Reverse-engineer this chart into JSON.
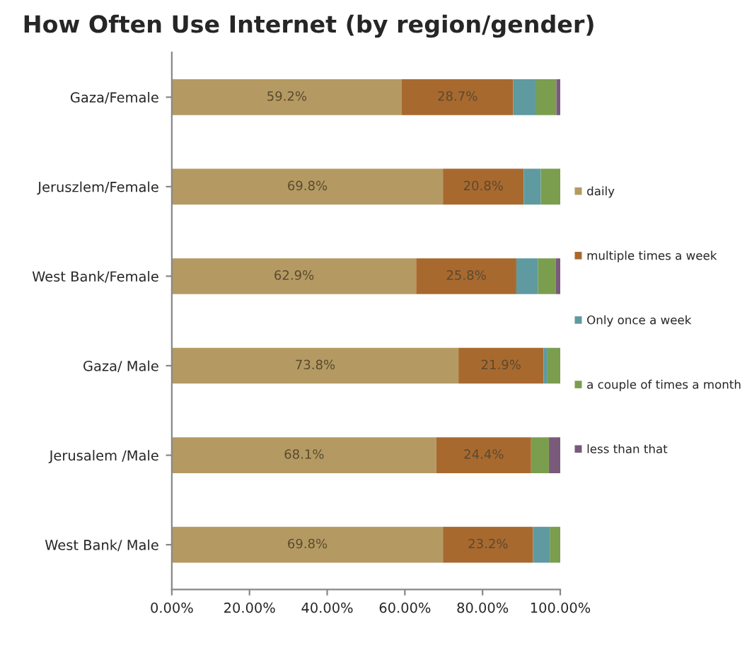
{
  "chart_data": {
    "type": "bar",
    "orientation": "horizontal",
    "stacked": true,
    "title": "How Often Use Internet (by region/gender)",
    "categories": [
      "Gaza/Female",
      "Jeruszlem/Female",
      "West Bank/Female",
      "Gaza/ Male",
      "Jerusalem /Male",
      "West Bank/ Male"
    ],
    "series": [
      {
        "name": "daily",
        "color": "#b49a62",
        "values": [
          59.2,
          69.8,
          62.9,
          73.8,
          68.1,
          69.8
        ],
        "value_labels": [
          "59.2%",
          "69.8%",
          "62.9%",
          "73.8%",
          "68.1%",
          "69.8%"
        ]
      },
      {
        "name": "multiple times a week",
        "color": "#a8692f",
        "values": [
          28.7,
          20.8,
          25.8,
          21.9,
          24.4,
          23.2
        ],
        "value_labels": [
          "28.7%",
          "20.8%",
          "25.8%",
          "21.9%",
          "24.4%",
          "23.2%"
        ]
      },
      {
        "name": "Only once a week",
        "color": "#5e9aa0",
        "values": [
          5.9,
          4.4,
          5.6,
          1.0,
          0,
          4.3
        ]
      },
      {
        "name": "a couple of times a month",
        "color": "#7a9e4e",
        "values": [
          5.2,
          5.0,
          4.5,
          3.3,
          4.6,
          2.7
        ]
      },
      {
        "name": "less than that",
        "color": "#7a5a7a",
        "values": [
          1.0,
          0,
          1.2,
          0,
          2.9,
          0
        ]
      }
    ],
    "xlim": [
      0,
      100
    ],
    "xticks": [
      {
        "value": 0,
        "label": "0.00%"
      },
      {
        "value": 20,
        "label": "20.00%"
      },
      {
        "value": 40,
        "label": "40.00%"
      },
      {
        "value": 60,
        "label": "60.00%"
      },
      {
        "value": 80,
        "label": "80.00%"
      },
      {
        "value": 100,
        "label": "100.00%"
      }
    ],
    "grid": false,
    "legend": "right"
  }
}
